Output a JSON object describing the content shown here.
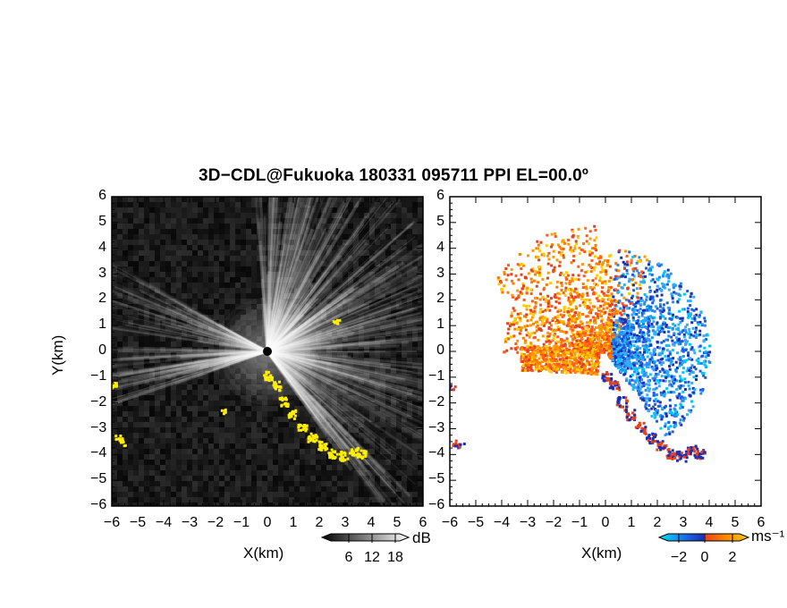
{
  "figure": {
    "title": "3D−CDL@Fukuoka 180331 095711 PPI EL=00.0º",
    "colors": {
      "background": "#ffffff",
      "frame": "#000000",
      "highlight": "#ffee00"
    }
  },
  "chart_data": [
    {
      "type": "heatmap",
      "name": "",
      "xlabel": "X(km)",
      "ylabel": "Y(km)",
      "xlim": [
        -6,
        6
      ],
      "ylim": [
        -6,
        6
      ],
      "xticks": [
        "−6",
        "−5",
        "−4",
        "−3",
        "−2",
        "−1",
        "0",
        "1",
        "2",
        "3",
        "4",
        "5",
        "6"
      ],
      "yticks": [
        "6",
        "5",
        "4",
        "3",
        "2",
        "1",
        "0",
        "−1",
        "−2",
        "−3",
        "−4",
        "−5",
        "−6"
      ],
      "colorbar": {
        "unit": "dB",
        "ticks": [
          "6",
          "12",
          "18"
        ],
        "min": 0,
        "max": 21,
        "colors": [
          "#000000",
          "#ffffff"
        ]
      }
    },
    {
      "type": "heatmap",
      "name": "",
      "xlabel": "X(km)",
      "ylabel": "",
      "xlim": [
        -6,
        6
      ],
      "ylim": [
        -6,
        6
      ],
      "xticks": [
        "−6",
        "−5",
        "−4",
        "−3",
        "−2",
        "−1",
        "0",
        "1",
        "2",
        "3",
        "4",
        "5",
        "6"
      ],
      "yticks": [
        "6",
        "5",
        "4",
        "3",
        "2",
        "1",
        "0",
        "−1",
        "−2",
        "−3",
        "−4",
        "−5",
        "−6"
      ],
      "colorbar": {
        "unit": "ms⁻¹",
        "ticks": [
          "−2",
          "0",
          "2"
        ],
        "min": -3,
        "max": 3,
        "colors": [
          "#00e5ff",
          "#1e5fe0",
          "#1a2fb5",
          "#e8401c",
          "#ff8800",
          "#ffcc00"
        ]
      }
    }
  ]
}
